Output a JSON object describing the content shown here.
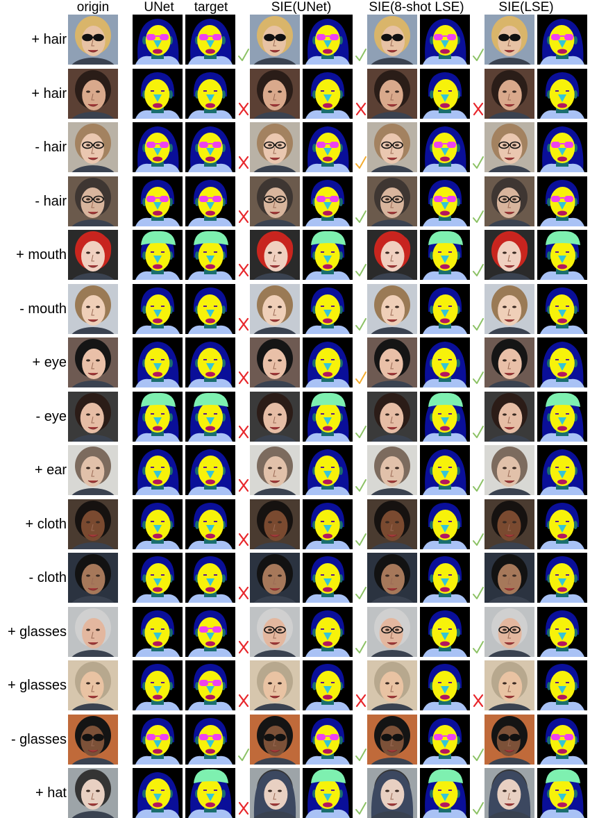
{
  "headers": [
    "origin",
    "UNet",
    "target",
    "SIE(UNet)",
    "SIE(8-shot LSE)",
    "SIE(LSE)"
  ],
  "rows": [
    {
      "label": "+ hair",
      "marks": [
        "check",
        "check",
        "check"
      ],
      "variant": "glasses-blonde"
    },
    {
      "label": "+ hair",
      "marks": [
        "cross",
        "cross",
        "cross"
      ],
      "variant": "dark-man"
    },
    {
      "label": "- hair",
      "marks": [
        "cross",
        "check-orange",
        "check"
      ],
      "variant": "glasses-woman"
    },
    {
      "label": "- hair",
      "marks": [
        "cross",
        "check",
        "check"
      ],
      "variant": "glasses-man"
    },
    {
      "label": "+ mouth",
      "marks": [
        "cross",
        "check",
        "check"
      ],
      "variant": "red-hat"
    },
    {
      "label": "- mouth",
      "marks": [
        "cross",
        "check",
        "check"
      ],
      "variant": "young-man"
    },
    {
      "label": "+ eye",
      "marks": [
        "cross",
        "check-orange",
        "check"
      ],
      "variant": "asian-girl"
    },
    {
      "label": "- eye",
      "marks": [
        "cross",
        "check",
        "check"
      ],
      "variant": "graduate"
    },
    {
      "label": "+ ear",
      "marks": [
        "cross",
        "check",
        "check"
      ],
      "variant": "long-hair-woman"
    },
    {
      "label": "+ cloth",
      "marks": [
        "cross",
        "check",
        "check"
      ],
      "variant": "smiling-man"
    },
    {
      "label": "- cloth",
      "marks": [
        "cross",
        "check",
        "check"
      ],
      "variant": "dark-hair-man"
    },
    {
      "label": "+ glasses",
      "marks": [
        "cross",
        "check",
        "check"
      ],
      "variant": "old-man"
    },
    {
      "label": "+ glasses",
      "marks": [
        "cross",
        "cross",
        "cross"
      ],
      "variant": "laughing-man"
    },
    {
      "label": "- glasses",
      "marks": [
        "check",
        "check",
        "check"
      ],
      "variant": "sunglasses-man"
    },
    {
      "label": "+ hat",
      "marks": [
        "cross",
        "check",
        "check"
      ],
      "variant": "hooded-woman"
    }
  ],
  "colors": {
    "background": "#000000",
    "hair": "#0a0f99",
    "skin": "#f7f20a",
    "nose": "#35c4d6",
    "lips": "#b3165e",
    "eyeglasses": "#ee42ee",
    "hat": "#7ef0b0",
    "cloth": "#a9c2f5",
    "neck": "#1a6e6e",
    "check": "#8cc265",
    "check_orange": "#f4ac2e",
    "cross": "#e8262b"
  }
}
